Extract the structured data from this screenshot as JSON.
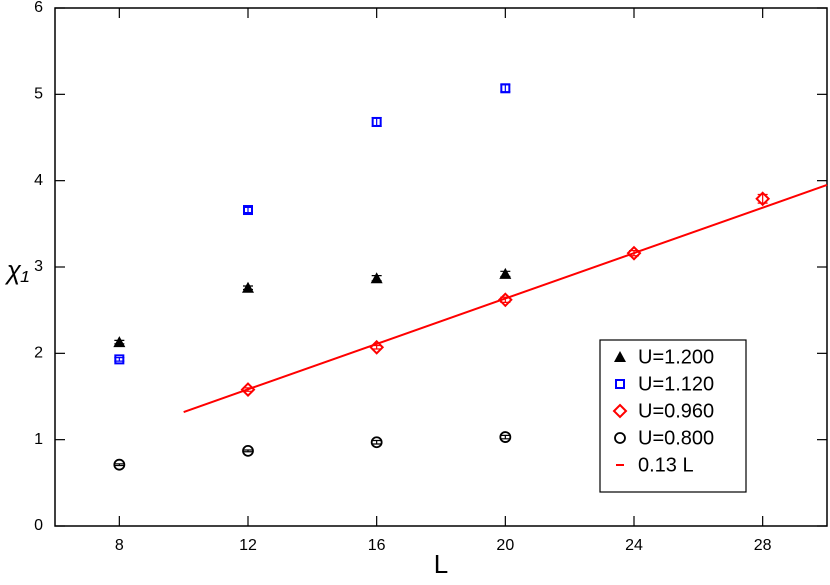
{
  "chart_data": {
    "type": "scatter",
    "xlabel": "L",
    "ylabel": "χ₁",
    "xlim": [
      6,
      30
    ],
    "xticks": [
      8,
      12,
      16,
      20,
      24,
      28
    ],
    "ylim": [
      0,
      6
    ],
    "yticks": [
      0,
      1,
      2,
      3,
      4,
      5,
      6
    ],
    "legend": "lower right",
    "series": [
      {
        "name": "U=1.200",
        "color": "#000000",
        "marker": "triangle",
        "x": [
          8,
          12,
          16,
          20
        ],
        "values": [
          2.13,
          2.76,
          2.87,
          2.92
        ],
        "errors": [
          0.02,
          0.02,
          0.03,
          0.03
        ]
      },
      {
        "name": "U=1.120",
        "color": "#0000ff",
        "marker": "square",
        "x": [
          8,
          12,
          16,
          20
        ],
        "values": [
          1.93,
          3.66,
          4.68,
          5.07
        ],
        "errors": [
          0.02,
          0.03,
          0.05,
          0.04
        ]
      },
      {
        "name": "U=0.960",
        "color": "#ff0000",
        "marker": "diamond",
        "x": [
          12,
          16,
          20,
          24,
          28
        ],
        "values": [
          1.58,
          2.07,
          2.62,
          3.16,
          3.79
        ],
        "errors": [
          0.02,
          0.02,
          0.03,
          0.03,
          0.05
        ]
      },
      {
        "name": "U=0.800",
        "color": "#000000",
        "marker": "circle",
        "x": [
          8,
          12,
          16,
          20
        ],
        "values": [
          0.71,
          0.87,
          0.97,
          1.03
        ],
        "errors": [
          0.01,
          0.01,
          0.02,
          0.02
        ]
      },
      {
        "name": "0.13 L",
        "color": "#ff0000",
        "marker": "line",
        "x": [
          10,
          30
        ],
        "values": [
          1.32,
          3.95
        ]
      }
    ]
  }
}
